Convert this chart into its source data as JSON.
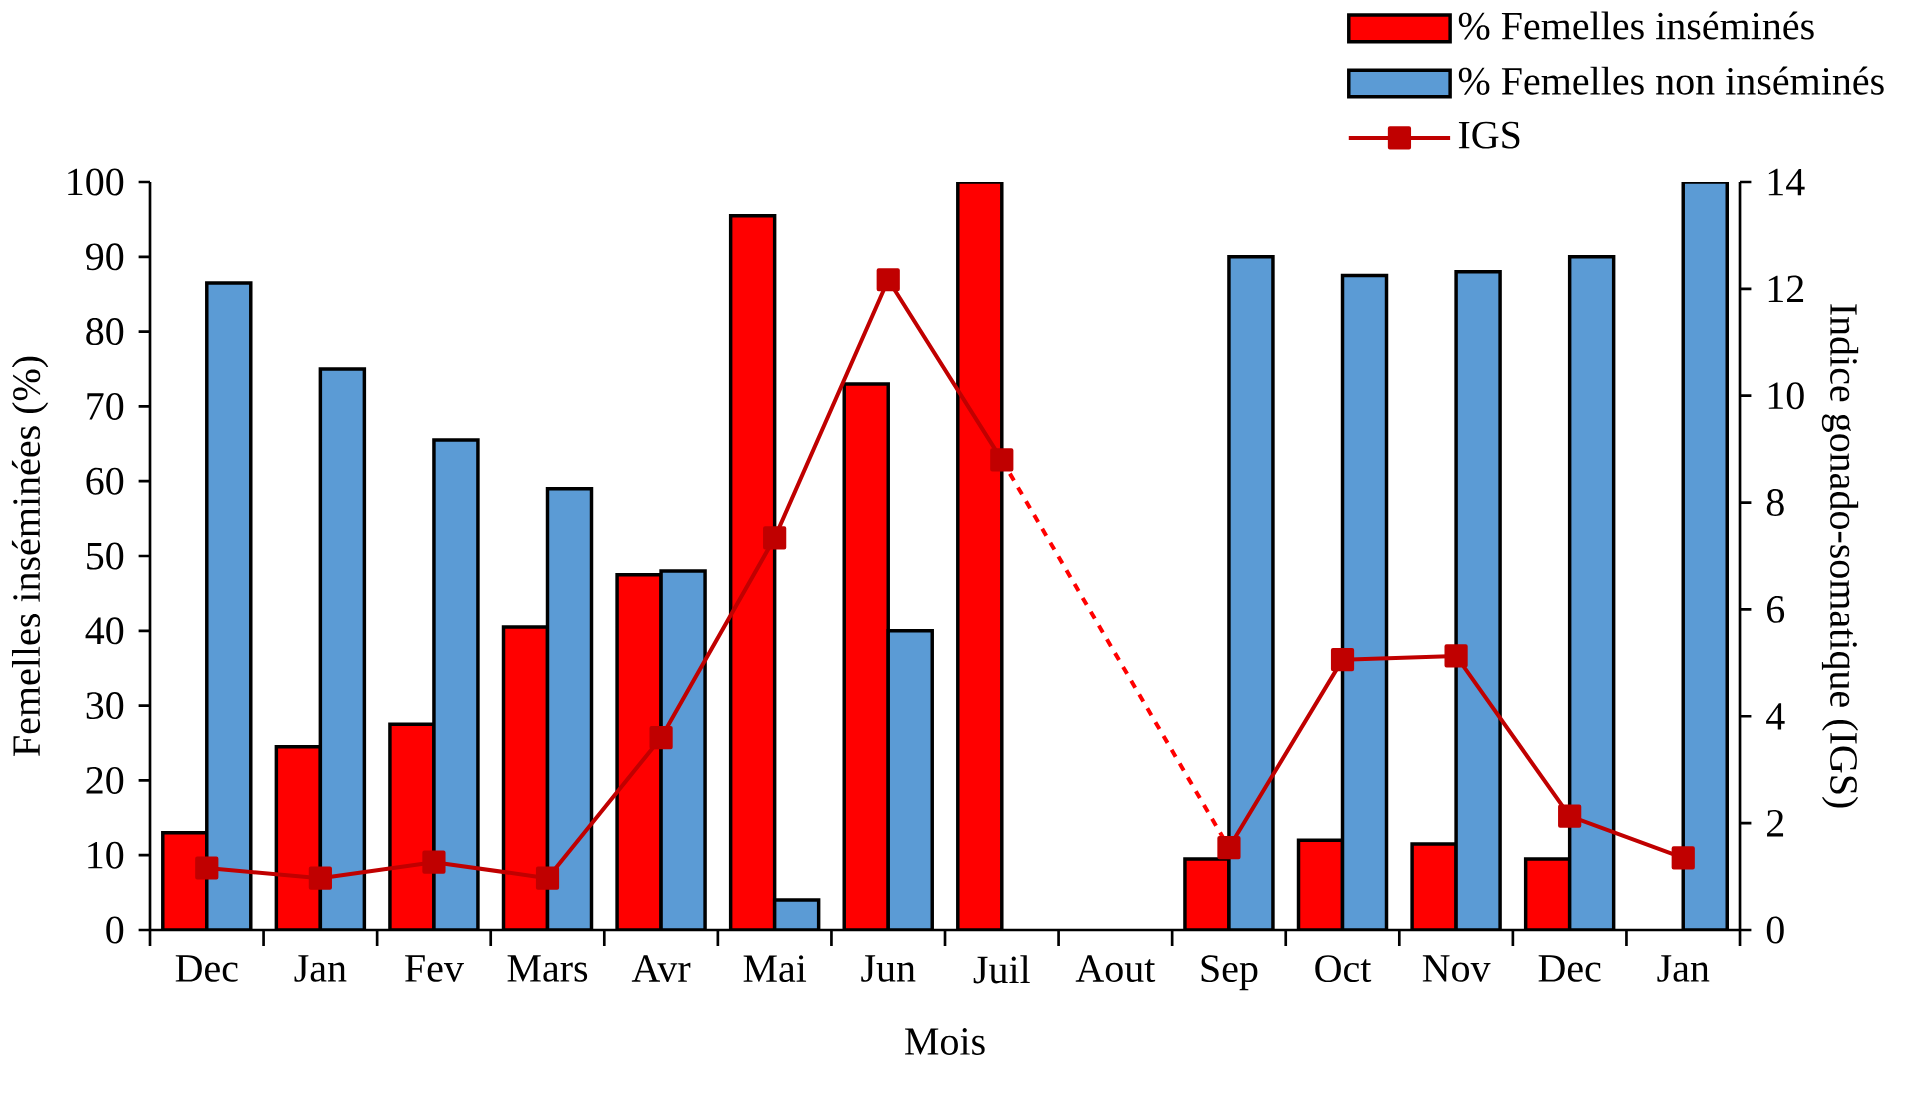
{
  "chart_data": {
    "type": "bar",
    "xlabel": "Mois",
    "ylabel": "Femelles inséminées (%)",
    "y2label": "Indice gonado-somatique (IGS)",
    "categories": [
      "Dec",
      "Jan",
      "Fev",
      "Mars",
      "Avr",
      "Mai",
      "Jun",
      "Juil",
      "Aout",
      "Sep",
      "Oct",
      "Nov",
      "Dec",
      "Jan"
    ],
    "series": [
      {
        "name": "% Femelles inséminés",
        "color": "#ff0000",
        "values": [
          13,
          24.5,
          27.5,
          40.5,
          47.5,
          95.5,
          73,
          100,
          null,
          9.5,
          12,
          11.5,
          9.5,
          null
        ]
      },
      {
        "name": "% Femelles non inséminés",
        "color": "#5b9bd5",
        "values": [
          86.5,
          75,
          65.5,
          59,
          48,
          4,
          40,
          null,
          null,
          90,
          87.5,
          88,
          90,
          100
        ]
      },
      {
        "name": "IGS",
        "type": "line",
        "axis": "y2",
        "marker": "square",
        "line_style": "solid",
        "color": "#c00000",
        "values": [
          1.16,
          0.97,
          1.27,
          0.97,
          3.6,
          7.34,
          12.17,
          8.8,
          null,
          1.54,
          5.06,
          5.13,
          2.13,
          1.35
        ]
      },
      {
        "type": "line",
        "axis": "y2",
        "marker": "none",
        "line_style": "dashed",
        "color": "#ff0000",
        "values": [
          null,
          null,
          null,
          null,
          null,
          null,
          null,
          8.8,
          null,
          1.54,
          null,
          null,
          null,
          null
        ]
      }
    ],
    "ylim": [
      0,
      100
    ],
    "yticks": [
      0,
      10,
      20,
      30,
      40,
      50,
      60,
      70,
      80,
      90,
      100
    ],
    "y2lim": [
      0,
      14
    ],
    "y2ticks": [
      0,
      2,
      4,
      6,
      8,
      10,
      12,
      14
    ],
    "legend": "top right",
    "grid": false
  }
}
